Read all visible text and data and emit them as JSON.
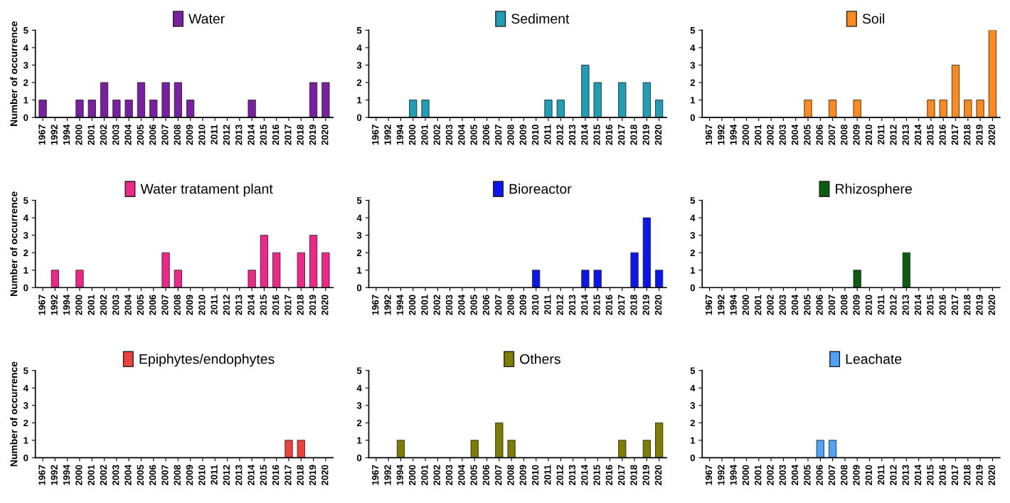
{
  "chart_data": [
    {
      "type": "bar",
      "categories": [
        "1967",
        "1992",
        "1994",
        "2000",
        "2001",
        "2002",
        "2003",
        "2004",
        "2005",
        "2006",
        "2007",
        "2008",
        "2009",
        "2010",
        "2011",
        "2012",
        "2013",
        "2014",
        "2015",
        "2016",
        "2017",
        "2018",
        "2019",
        "2020"
      ],
      "series": [
        {
          "name": "Water",
          "color": "#7a1fa2",
          "values": [
            1,
            0,
            0,
            1,
            1,
            2,
            1,
            1,
            2,
            1,
            2,
            2,
            1,
            0,
            0,
            0,
            0,
            1,
            0,
            0,
            0,
            0,
            2,
            2
          ]
        }
      ],
      "ylabel": "Number of occurrence",
      "ylim": [
        0,
        5
      ],
      "yticks": [
        0,
        1,
        2,
        3,
        4,
        5
      ],
      "legend": "top",
      "grid": false
    },
    {
      "type": "bar",
      "categories": [
        "1967",
        "1992",
        "1994",
        "2000",
        "2001",
        "2002",
        "2003",
        "2004",
        "2005",
        "2006",
        "2007",
        "2008",
        "2009",
        "2010",
        "2011",
        "2012",
        "2013",
        "2014",
        "2015",
        "2016",
        "2017",
        "2018",
        "2019",
        "2020"
      ],
      "series": [
        {
          "name": "Sediment",
          "color": "#1f9fb5",
          "values": [
            0,
            0,
            0,
            1,
            1,
            0,
            0,
            0,
            0,
            0,
            0,
            0,
            0,
            0,
            1,
            1,
            0,
            3,
            2,
            0,
            2,
            0,
            2,
            1
          ]
        }
      ],
      "ylim": [
        0,
        5
      ],
      "yticks": [
        0,
        1,
        2,
        3,
        4,
        5
      ],
      "legend": "top",
      "grid": false
    },
    {
      "type": "bar",
      "categories": [
        "1967",
        "1992",
        "1994",
        "2000",
        "2001",
        "2002",
        "2003",
        "2004",
        "2005",
        "2006",
        "2007",
        "2008",
        "2009",
        "2010",
        "2011",
        "2012",
        "2013",
        "2014",
        "2015",
        "2016",
        "2017",
        "2018",
        "2019",
        "2020"
      ],
      "series": [
        {
          "name": "Soil",
          "color": "#ff8a1c",
          "values": [
            0,
            0,
            0,
            0,
            0,
            0,
            0,
            0,
            1,
            0,
            1,
            0,
            1,
            0,
            0,
            0,
            0,
            0,
            1,
            1,
            3,
            1,
            1,
            5
          ]
        }
      ],
      "ylim": [
        0,
        5
      ],
      "yticks": [
        0,
        1,
        2,
        3,
        4,
        5
      ],
      "legend": "top",
      "grid": false
    },
    {
      "type": "bar",
      "categories": [
        "1967",
        "1992",
        "1994",
        "2000",
        "2001",
        "2002",
        "2003",
        "2004",
        "2005",
        "2006",
        "2007",
        "2008",
        "2009",
        "2010",
        "2011",
        "2012",
        "2013",
        "2014",
        "2015",
        "2016",
        "2017",
        "2018",
        "2019",
        "2020"
      ],
      "series": [
        {
          "name": "Water tratament plant",
          "color": "#f2268a",
          "values": [
            0,
            1,
            0,
            1,
            0,
            0,
            0,
            0,
            0,
            0,
            2,
            1,
            0,
            0,
            0,
            0,
            0,
            1,
            3,
            2,
            0,
            2,
            3,
            2
          ]
        }
      ],
      "ylabel": "Number of occurrence",
      "ylim": [
        0,
        5
      ],
      "yticks": [
        0,
        1,
        2,
        3,
        4,
        5
      ],
      "legend": "top",
      "grid": false
    },
    {
      "type": "bar",
      "categories": [
        "1967",
        "1992",
        "1994",
        "2000",
        "2001",
        "2002",
        "2003",
        "2004",
        "2005",
        "2006",
        "2007",
        "2008",
        "2009",
        "2010",
        "2011",
        "2012",
        "2013",
        "2014",
        "2015",
        "2016",
        "2017",
        "2018",
        "2019",
        "2020"
      ],
      "series": [
        {
          "name": "Bioreactor",
          "color": "#0b16ef",
          "values": [
            0,
            0,
            0,
            0,
            0,
            0,
            0,
            0,
            0,
            0,
            0,
            0,
            0,
            1,
            0,
            0,
            0,
            1,
            1,
            0,
            0,
            2,
            4,
            1
          ]
        }
      ],
      "ylim": [
        0,
        5
      ],
      "yticks": [
        0,
        1,
        2,
        3,
        4,
        5
      ],
      "legend": "top",
      "grid": false
    },
    {
      "type": "bar",
      "categories": [
        "1967",
        "1992",
        "1994",
        "2000",
        "2001",
        "2002",
        "2003",
        "2004",
        "2005",
        "2006",
        "2007",
        "2008",
        "2009",
        "2010",
        "2011",
        "2012",
        "2013",
        "2014",
        "2015",
        "2016",
        "2017",
        "2018",
        "2019",
        "2020"
      ],
      "series": [
        {
          "name": "Rhizosphere",
          "color": "#0c5c10",
          "values": [
            0,
            0,
            0,
            0,
            0,
            0,
            0,
            0,
            0,
            0,
            0,
            0,
            1,
            0,
            0,
            0,
            2,
            0,
            0,
            0,
            0,
            0,
            0,
            0
          ]
        }
      ],
      "ylim": [
        0,
        5
      ],
      "yticks": [
        0,
        1,
        2,
        3,
        4,
        5
      ],
      "legend": "top",
      "grid": false
    },
    {
      "type": "bar",
      "categories": [
        "1967",
        "1992",
        "1994",
        "2000",
        "2001",
        "2002",
        "2003",
        "2004",
        "2005",
        "2006",
        "2007",
        "2008",
        "2009",
        "2010",
        "2011",
        "2012",
        "2013",
        "2014",
        "2015",
        "2016",
        "2017",
        "2018",
        "2019",
        "2020"
      ],
      "series": [
        {
          "name": "Epiphytes/endophytes",
          "color": "#f0403c",
          "values": [
            0,
            0,
            0,
            0,
            0,
            0,
            0,
            0,
            0,
            0,
            0,
            0,
            0,
            0,
            0,
            0,
            0,
            0,
            0,
            0,
            1,
            1,
            0,
            0
          ]
        }
      ],
      "ylabel": "Number of occurrence",
      "ylim": [
        0,
        5
      ],
      "yticks": [
        0,
        1,
        2,
        3,
        4,
        5
      ],
      "legend": "top",
      "grid": false
    },
    {
      "type": "bar",
      "categories": [
        "1967",
        "1992",
        "1994",
        "2000",
        "2001",
        "2002",
        "2003",
        "2004",
        "2005",
        "2006",
        "2007",
        "2008",
        "2009",
        "2010",
        "2011",
        "2012",
        "2013",
        "2014",
        "2015",
        "2016",
        "2017",
        "2018",
        "2019",
        "2020"
      ],
      "series": [
        {
          "name": "Others",
          "color": "#7d7d00",
          "values": [
            0,
            0,
            1,
            0,
            0,
            0,
            0,
            0,
            1,
            0,
            2,
            1,
            0,
            0,
            0,
            0,
            0,
            0,
            0,
            0,
            1,
            0,
            1,
            2
          ]
        }
      ],
      "ylim": [
        0,
        5
      ],
      "yticks": [
        0,
        1,
        2,
        3,
        4,
        5
      ],
      "legend": "top",
      "grid": false
    },
    {
      "type": "bar",
      "categories": [
        "1967",
        "1992",
        "1994",
        "2000",
        "2001",
        "2002",
        "2003",
        "2004",
        "2005",
        "2006",
        "2007",
        "2008",
        "2009",
        "2010",
        "2011",
        "2012",
        "2013",
        "2014",
        "2015",
        "2016",
        "2017",
        "2018",
        "2019",
        "2020"
      ],
      "series": [
        {
          "name": "Leachate",
          "color": "#4da3f5",
          "values": [
            0,
            0,
            0,
            0,
            0,
            0,
            0,
            0,
            0,
            1,
            1,
            0,
            0,
            0,
            0,
            0,
            0,
            0,
            0,
            0,
            0,
            0,
            0,
            0
          ]
        }
      ],
      "ylim": [
        0,
        5
      ],
      "yticks": [
        0,
        1,
        2,
        3,
        4,
        5
      ],
      "legend": "top",
      "grid": false
    }
  ]
}
